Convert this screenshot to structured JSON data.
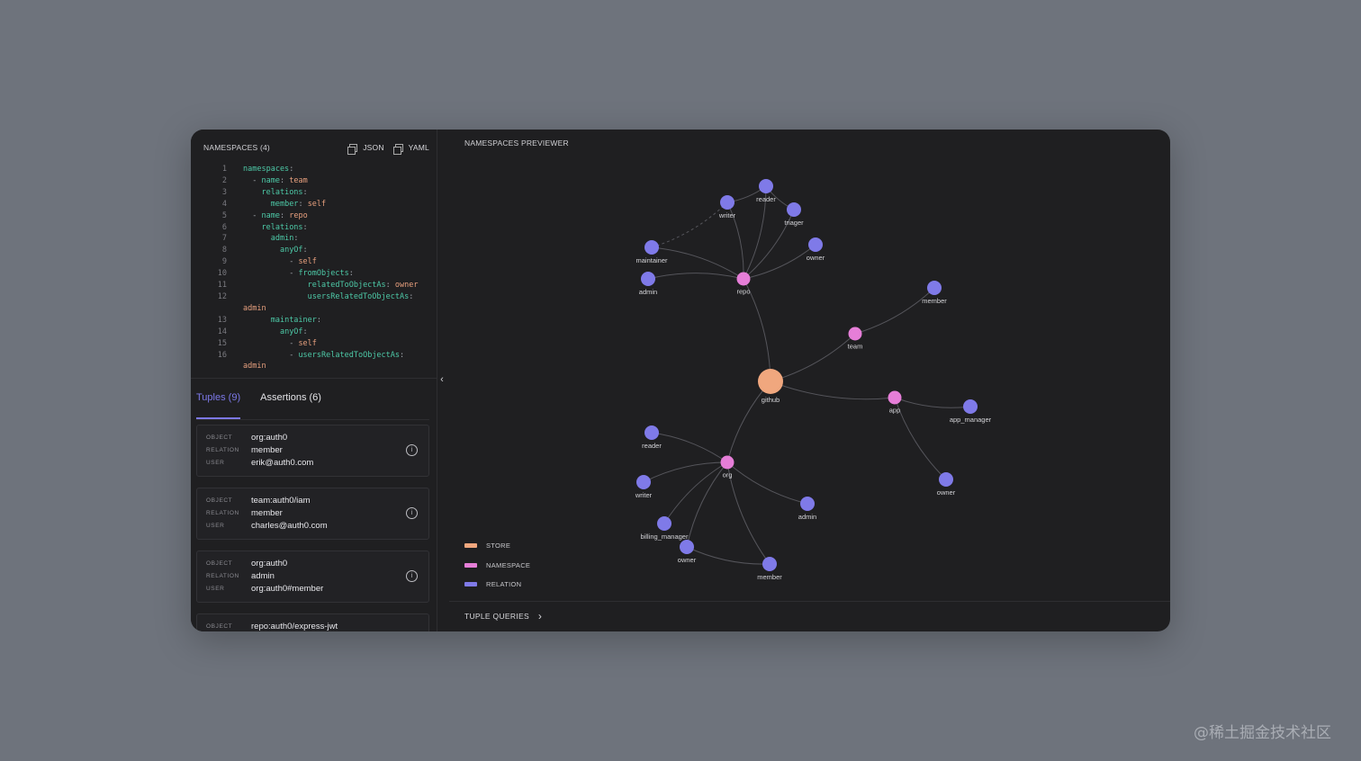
{
  "left_panel": {
    "title": "NAMESPACES (4)",
    "json_label": "JSON",
    "yaml_label": "YAML",
    "code_lines": [
      {
        "n": "1",
        "depth": 0,
        "key": "namespaces",
        "sep": ":",
        "val": ""
      },
      {
        "n": "2",
        "depth": 1,
        "dash": "- ",
        "key": "name",
        "sep": ": ",
        "val": "team"
      },
      {
        "n": "3",
        "depth": 2,
        "key": "relations",
        "sep": ":",
        "val": ""
      },
      {
        "n": "4",
        "depth": 3,
        "key": "member",
        "sep": ": ",
        "val": "self"
      },
      {
        "n": "5",
        "depth": 1,
        "dash": "- ",
        "key": "name",
        "sep": ": ",
        "val": "repo"
      },
      {
        "n": "6",
        "depth": 2,
        "key": "relations",
        "sep": ":",
        "val": ""
      },
      {
        "n": "7",
        "depth": 3,
        "key": "admin",
        "sep": ":",
        "val": ""
      },
      {
        "n": "8",
        "depth": 4,
        "key": "anyOf",
        "sep": ":",
        "val": ""
      },
      {
        "n": "9",
        "depth": 5,
        "dash": "- ",
        "key": "",
        "sep": "",
        "val": "self"
      },
      {
        "n": "10",
        "depth": 5,
        "dash": "- ",
        "key": "fromObjects",
        "sep": ":",
        "val": ""
      },
      {
        "n": "11",
        "depth": 7,
        "key": "relatedToObjectAs",
        "sep": ": ",
        "val": "owner"
      },
      {
        "n": "12",
        "depth": 7,
        "key": "usersRelatedToObjectAs",
        "sep": ":",
        "val": "",
        "wrap": "admin"
      },
      {
        "n": "13",
        "depth": 3,
        "key": "maintainer",
        "sep": ":",
        "val": ""
      },
      {
        "n": "14",
        "depth": 4,
        "key": "anyOf",
        "sep": ":",
        "val": ""
      },
      {
        "n": "15",
        "depth": 5,
        "dash": "- ",
        "key": "",
        "sep": "",
        "val": "self"
      },
      {
        "n": "16",
        "depth": 5,
        "dash": "- ",
        "key": "usersRelatedToObjectAs",
        "sep": ":",
        "val": "",
        "wrap": "admin"
      }
    ],
    "tabs": [
      {
        "label": "Tuples (9)",
        "active": true
      },
      {
        "label": "Assertions (6)",
        "active": false
      }
    ],
    "field_labels": {
      "object": "OBJECT",
      "relation": "RELATION",
      "user": "USER"
    },
    "tuples": [
      {
        "object": "org:auth0",
        "relation": "member",
        "user": "erik@auth0.com"
      },
      {
        "object": "team:auth0/iam",
        "relation": "member",
        "user": "charles@auth0.com"
      },
      {
        "object": "org:auth0",
        "relation": "admin",
        "user": "org:auth0#member"
      },
      {
        "object": "repo:auth0/express-jwt",
        "relation": "",
        "user": ""
      }
    ]
  },
  "right_panel": {
    "title": "NAMESPACES PREVIEWER",
    "legend": [
      {
        "label": "STORE",
        "color": "#f0a77e"
      },
      {
        "label": "NAMESPACE",
        "color": "#e67ed8"
      },
      {
        "label": "RELATION",
        "color": "#7f7ae8"
      }
    ],
    "footer_label": "TUPLE QUERIES",
    "graph": {
      "colors": {
        "store": "#f0a77e",
        "namespace": "#e67ed8",
        "relation": "#7f7ae8",
        "edge": "#55555b"
      },
      "nodes": [
        {
          "id": "github",
          "label": "github",
          "kind": "store"
        },
        {
          "id": "repo",
          "label": "repo",
          "kind": "namespace"
        },
        {
          "id": "team",
          "label": "team",
          "kind": "namespace"
        },
        {
          "id": "app",
          "label": "app",
          "kind": "namespace"
        },
        {
          "id": "org",
          "label": "org",
          "kind": "namespace"
        },
        {
          "id": "repo_reader",
          "label": "reader",
          "kind": "relation"
        },
        {
          "id": "repo_writer",
          "label": "writer",
          "kind": "relation"
        },
        {
          "id": "repo_triager",
          "label": "triager",
          "kind": "relation"
        },
        {
          "id": "repo_maintainer",
          "label": "maintainer",
          "kind": "relation"
        },
        {
          "id": "repo_owner",
          "label": "owner",
          "kind": "relation"
        },
        {
          "id": "repo_admin",
          "label": "admin",
          "kind": "relation"
        },
        {
          "id": "team_member",
          "label": "member",
          "kind": "relation"
        },
        {
          "id": "app_manager",
          "label": "app_manager",
          "kind": "relation"
        },
        {
          "id": "app_owner",
          "label": "owner",
          "kind": "relation"
        },
        {
          "id": "org_reader",
          "label": "reader",
          "kind": "relation"
        },
        {
          "id": "org_writer",
          "label": "writer",
          "kind": "relation"
        },
        {
          "id": "org_admin",
          "label": "admin",
          "kind": "relation"
        },
        {
          "id": "org_billing",
          "label": "billing_manager",
          "kind": "relation"
        },
        {
          "id": "org_owner",
          "label": "owner",
          "kind": "relation"
        },
        {
          "id": "org_member",
          "label": "member",
          "kind": "relation"
        }
      ],
      "edges": [
        [
          "github",
          "repo"
        ],
        [
          "github",
          "team"
        ],
        [
          "github",
          "app"
        ],
        [
          "github",
          "org"
        ],
        [
          "repo",
          "repo_reader"
        ],
        [
          "repo",
          "repo_writer"
        ],
        [
          "repo",
          "repo_triager"
        ],
        [
          "repo",
          "repo_maintainer"
        ],
        [
          "repo",
          "repo_owner"
        ],
        [
          "repo",
          "repo_admin"
        ],
        [
          "repo_writer",
          "repo_reader"
        ],
        [
          "repo_reader",
          "repo_triager"
        ],
        [
          "team",
          "team_member"
        ],
        [
          "app",
          "app_manager"
        ],
        [
          "app",
          "app_owner"
        ],
        [
          "org",
          "org_reader"
        ],
        [
          "org",
          "org_writer"
        ],
        [
          "org",
          "org_admin"
        ],
        [
          "org",
          "org_billing"
        ],
        [
          "org",
          "org_owner"
        ],
        [
          "org",
          "org_member"
        ],
        [
          "org_owner",
          "org_member"
        ]
      ],
      "dashed_edges": [
        [
          "repo_maintainer",
          "repo_writer"
        ]
      ]
    }
  },
  "watermark": "@稀土掘金技术社区"
}
